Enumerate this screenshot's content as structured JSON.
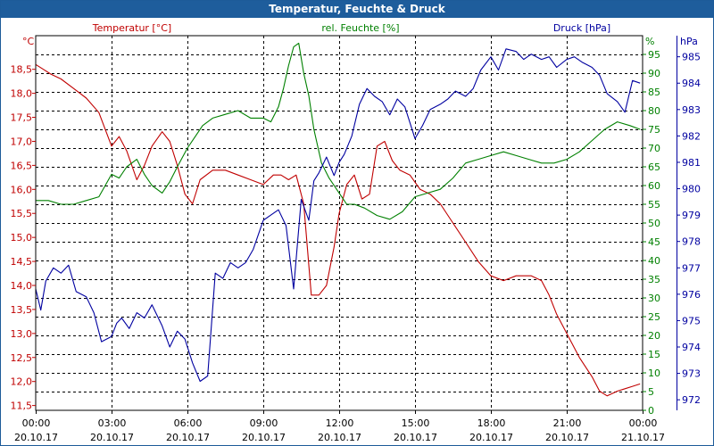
{
  "window": {
    "title": "Temperatur, Feuchte & Druck"
  },
  "chart_data": {
    "type": "line",
    "grid": true,
    "x_ticks": [
      {
        "time": "00:00",
        "date": "20.10.17"
      },
      {
        "time": "03:00",
        "date": "20.10.17"
      },
      {
        "time": "06:00",
        "date": "20.10.17"
      },
      {
        "time": "09:00",
        "date": "20.10.17"
      },
      {
        "time": "12:00",
        "date": "20.10.17"
      },
      {
        "time": "15:00",
        "date": "20.10.17"
      },
      {
        "time": "18:00",
        "date": "20.10.17"
      },
      {
        "time": "21:00",
        "date": "20.10.17"
      },
      {
        "time": "00:00",
        "date": "21.10.17"
      }
    ],
    "xlim": [
      0,
      24
    ],
    "axes": {
      "temperature": {
        "label": "Temperatur [°C]",
        "unit": "°C",
        "color": "#c00000",
        "lim": [
          11.4,
          19.2
        ],
        "ticks": [
          "11,5",
          "12,0",
          "12,5",
          "13,0",
          "13,5",
          "14,0",
          "14,5",
          "15,0",
          "15,5",
          "16,0",
          "16,5",
          "17,0",
          "17,5",
          "18,0",
          "18,5"
        ],
        "tick_values": [
          11.5,
          12.0,
          12.5,
          13.0,
          13.5,
          14.0,
          14.5,
          15.0,
          15.5,
          16.0,
          16.5,
          17.0,
          17.5,
          18.0,
          18.5
        ]
      },
      "humidity": {
        "label": "rel. Feuchte [%]",
        "unit": "%",
        "color": "#008000",
        "lim": [
          0,
          100
        ],
        "ticks": [
          "0",
          "5",
          "10",
          "15",
          "20",
          "25",
          "30",
          "35",
          "40",
          "45",
          "50",
          "55",
          "60",
          "65",
          "70",
          "75",
          "80",
          "85",
          "90",
          "95"
        ],
        "tick_values": [
          0,
          5,
          10,
          15,
          20,
          25,
          30,
          35,
          40,
          45,
          50,
          55,
          60,
          65,
          70,
          75,
          80,
          85,
          90,
          95
        ]
      },
      "pressure": {
        "label": "Druck [hPa]",
        "unit": "hPa",
        "color": "#0000a0",
        "lim": [
          971.6,
          985.8
        ],
        "ticks": [
          "972",
          "973",
          "974",
          "975",
          "976",
          "977",
          "978",
          "979",
          "980",
          "981",
          "982",
          "983",
          "984",
          "985"
        ],
        "tick_values": [
          972,
          973,
          974,
          975,
          976,
          977,
          978,
          979,
          980,
          981,
          982,
          983,
          984,
          985
        ]
      }
    },
    "series": [
      {
        "name": "Temperatur [°C]",
        "axis": "temperature",
        "color": "#c00000",
        "x": [
          0,
          0.3,
          0.6,
          1.0,
          1.5,
          2.0,
          2.5,
          3.0,
          3.3,
          3.6,
          4.0,
          4.3,
          4.6,
          5.0,
          5.3,
          5.6,
          5.9,
          6.2,
          6.5,
          7.0,
          7.5,
          8.0,
          8.5,
          9.0,
          9.4,
          9.7,
          10.0,
          10.3,
          10.6,
          10.9,
          11.2,
          11.5,
          11.8,
          12.0,
          12.3,
          12.6,
          12.9,
          13.2,
          13.5,
          13.8,
          14.1,
          14.4,
          14.8,
          15.2,
          15.6,
          16.0,
          16.5,
          17.0,
          17.5,
          18.0,
          18.5,
          19.0,
          19.3,
          19.6,
          20.0,
          20.3,
          20.6,
          21.0,
          21.5,
          22.0,
          22.3,
          22.6,
          23.0,
          23.3,
          23.6,
          23.9
        ],
        "values": [
          18.6,
          18.5,
          18.4,
          18.3,
          18.1,
          17.9,
          17.6,
          16.9,
          17.1,
          16.8,
          16.2,
          16.5,
          16.9,
          17.2,
          17.0,
          16.5,
          15.9,
          15.7,
          16.2,
          16.4,
          16.4,
          16.3,
          16.2,
          16.1,
          16.3,
          16.3,
          16.2,
          16.3,
          15.7,
          13.8,
          13.8,
          14.0,
          14.8,
          15.5,
          16.1,
          16.3,
          15.8,
          15.9,
          16.9,
          17.0,
          16.6,
          16.4,
          16.3,
          16.0,
          15.9,
          15.7,
          15.3,
          14.9,
          14.5,
          14.2,
          14.1,
          14.2,
          14.2,
          14.2,
          14.1,
          13.8,
          13.4,
          13.0,
          12.5,
          12.1,
          11.8,
          11.7,
          11.8,
          11.85,
          11.9,
          11.95
        ]
      },
      {
        "name": "rel. Feuchte [%]",
        "axis": "humidity",
        "color": "#008000",
        "x": [
          0,
          0.5,
          1.0,
          1.5,
          2.0,
          2.5,
          3.0,
          3.3,
          3.6,
          4.0,
          4.3,
          4.6,
          5.0,
          5.3,
          5.6,
          6.0,
          6.3,
          6.6,
          7.0,
          7.5,
          8.0,
          8.5,
          9.0,
          9.3,
          9.6,
          9.8,
          10.0,
          10.2,
          10.4,
          10.6,
          10.8,
          11.0,
          11.3,
          11.6,
          12.0,
          12.3,
          12.6,
          13.0,
          13.5,
          14.0,
          14.5,
          15.0,
          15.5,
          16.0,
          16.5,
          17.0,
          17.5,
          18.0,
          18.5,
          19.0,
          19.5,
          20.0,
          20.5,
          21.0,
          21.5,
          22.0,
          22.5,
          23.0,
          23.5,
          23.9
        ],
        "values": [
          56,
          56,
          55,
          55,
          56,
          57,
          63,
          62,
          65,
          67,
          63,
          60,
          58,
          61,
          65,
          70,
          73,
          76,
          78,
          79,
          80,
          78,
          78,
          77,
          81,
          86,
          92,
          97,
          98,
          90,
          84,
          75,
          66,
          62,
          58,
          55,
          55,
          54,
          52,
          51,
          53,
          57,
          58,
          59,
          62,
          66,
          67,
          68,
          69,
          68,
          67,
          66,
          66,
          67,
          69,
          72,
          75,
          77,
          76,
          75
        ]
      },
      {
        "name": "Druck [hPa]",
        "axis": "pressure",
        "color": "#0000a0",
        "x": [
          0,
          0.2,
          0.4,
          0.7,
          1.0,
          1.3,
          1.6,
          2.0,
          2.3,
          2.6,
          3.0,
          3.2,
          3.4,
          3.7,
          4.0,
          4.3,
          4.6,
          5.0,
          5.3,
          5.6,
          5.9,
          6.2,
          6.5,
          6.8,
          7.1,
          7.4,
          7.7,
          8.0,
          8.3,
          8.6,
          9.0,
          9.3,
          9.6,
          9.9,
          10.2,
          10.5,
          10.8,
          11.0,
          11.2,
          11.5,
          11.8,
          12.0,
          12.2,
          12.5,
          12.8,
          13.1,
          13.4,
          13.7,
          14.0,
          14.3,
          14.6,
          15.0,
          15.3,
          15.6,
          16.0,
          16.3,
          16.6,
          17.0,
          17.3,
          17.6,
          18.0,
          18.3,
          18.6,
          19.0,
          19.3,
          19.6,
          20.0,
          20.3,
          20.6,
          21.0,
          21.3,
          21.6,
          22.0,
          22.3,
          22.6,
          23.0,
          23.3,
          23.6,
          23.9
        ],
        "values": [
          976.2,
          975.4,
          976.5,
          977.0,
          976.8,
          977.1,
          976.1,
          975.9,
          975.3,
          974.2,
          974.4,
          974.9,
          975.1,
          974.7,
          975.3,
          975.1,
          975.6,
          974.8,
          974.0,
          974.6,
          974.3,
          973.4,
          972.7,
          972.9,
          976.8,
          976.6,
          977.2,
          977.0,
          977.2,
          977.7,
          978.8,
          979.0,
          979.2,
          978.6,
          976.2,
          979.6,
          978.8,
          980.3,
          980.6,
          981.2,
          980.5,
          981.0,
          981.3,
          982.0,
          983.2,
          983.8,
          983.5,
          983.3,
          982.8,
          983.4,
          983.1,
          981.9,
          982.4,
          983.0,
          983.2,
          983.4,
          983.7,
          983.5,
          983.8,
          984.5,
          985.0,
          984.5,
          985.3,
          985.2,
          984.9,
          985.1,
          984.9,
          985.0,
          984.6,
          984.9,
          985.0,
          984.8,
          984.6,
          984.3,
          983.6,
          983.3,
          982.9,
          984.1,
          984.0
        ]
      }
    ]
  }
}
